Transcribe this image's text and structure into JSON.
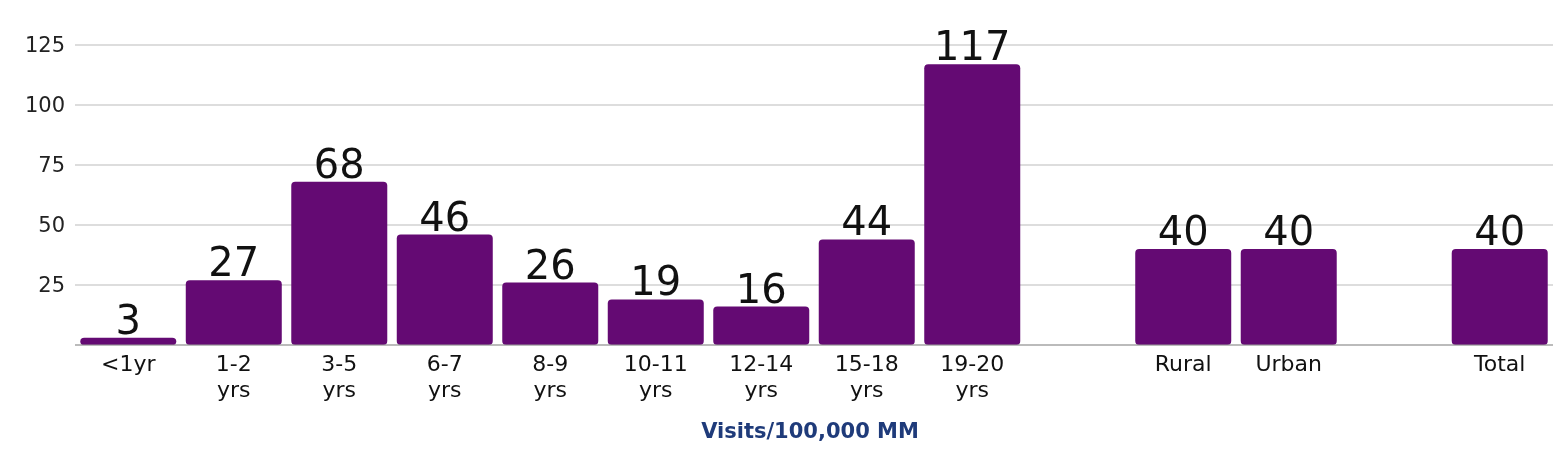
{
  "chart_data": {
    "type": "bar",
    "xlabel": "Visits/100,000 MM",
    "categories": [
      "<1yr",
      "1-2 yrs",
      "3-5 yrs",
      "6-7 yrs",
      "8-9 yrs",
      "10-11 yrs",
      "12-14 yrs",
      "15-18 yrs",
      "19-20 yrs",
      null,
      "Rural",
      "Urban",
      null,
      "Total"
    ],
    "values": [
      3,
      27,
      68,
      46,
      26,
      19,
      16,
      44,
      117,
      null,
      40,
      40,
      null,
      40
    ],
    "color": "#640a73",
    "ylim": [
      0,
      125
    ],
    "yticks": [
      {
        "value": 0,
        "label": null
      },
      25,
      50,
      75,
      100,
      125
    ],
    "grid": "y",
    "data_labels": true
  }
}
